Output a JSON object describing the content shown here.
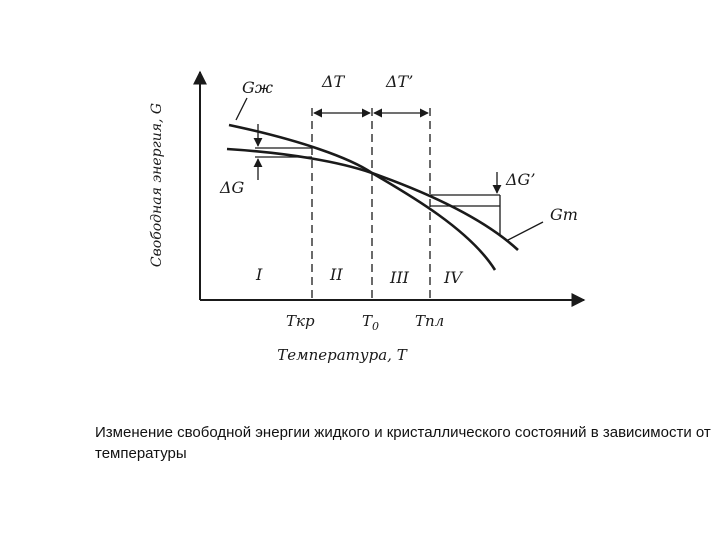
{
  "diagram": {
    "y_axis_label": "Свободная энергия, G",
    "x_axis_label": "Температура, T",
    "curve_labels": {
      "liquid": "Gж",
      "solid": "Gт"
    },
    "annotations": {
      "dG": "ΔG",
      "dG_prime": "ΔG’",
      "dT": "ΔT",
      "dT_prime": "ΔT’"
    },
    "temperatures": {
      "t_cr": "Tкр",
      "t_0": "T",
      "t_0_sub": "0",
      "t_melt": "Tпл"
    },
    "regions": [
      "I",
      "II",
      "III",
      "IV"
    ]
  },
  "caption": "Изменение свободной энергии жидкого и кристаллического состояний в зависимости от температуры"
}
